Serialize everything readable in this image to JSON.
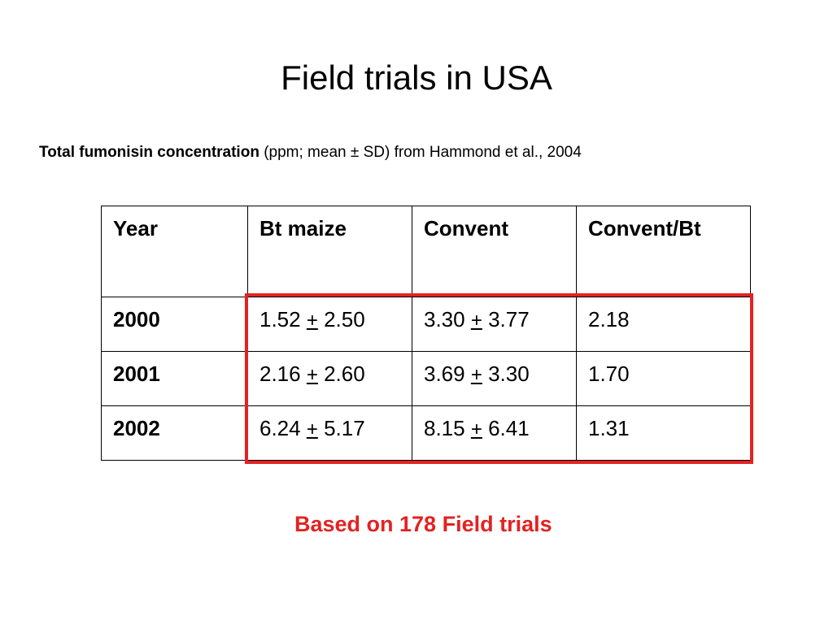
{
  "title": "Field trials in USA",
  "subtitle": {
    "bold_part": "Total fumonisin concentration",
    "rest": " (ppm; mean ± SD) from Hammond et al., 2004"
  },
  "table": {
    "headers": [
      "Year",
      "Bt maize",
      "Convent",
      "Convent/Bt"
    ],
    "pm_symbol": "+",
    "rows": [
      {
        "year": "2000",
        "bt_mean": "1.52",
        "bt_sd": "2.50",
        "conv_mean": "3.30",
        "conv_sd": "3.77",
        "ratio": "2.18"
      },
      {
        "year": "2001",
        "bt_mean": "2.16",
        "bt_sd": "2.60",
        "conv_mean": "3.69",
        "conv_sd": "3.30",
        "ratio": "1.70"
      },
      {
        "year": "2002",
        "bt_mean": "6.24",
        "bt_sd": "5.17",
        "conv_mean": "8.15",
        "conv_sd": "6.41",
        "ratio": "1.31"
      }
    ]
  },
  "footnote": "Based on 178 Field trials",
  "colors": {
    "highlight": "#e32222",
    "text": "#000000"
  }
}
